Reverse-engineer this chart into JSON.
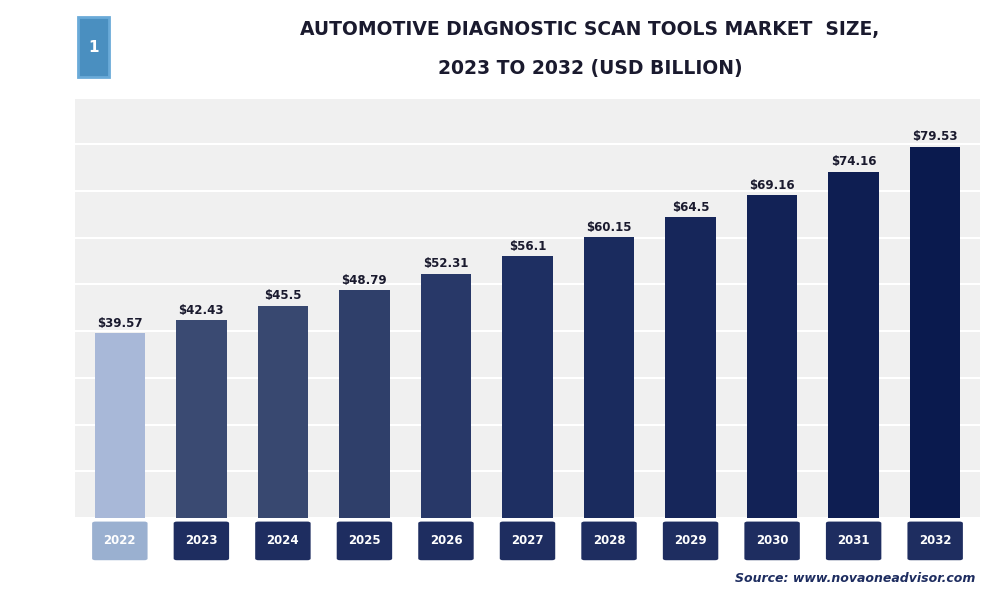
{
  "title_line1": "AUTOMOTIVE DIAGNOSTIC SCAN TOOLS MARKET  SIZE,",
  "title_line2": "2023 TO 2032 (USD BILLION)",
  "years": [
    "2022",
    "2023",
    "2024",
    "2025",
    "2026",
    "2027",
    "2028",
    "2029",
    "2030",
    "2031",
    "2032"
  ],
  "values": [
    39.57,
    42.43,
    45.5,
    48.79,
    52.31,
    56.1,
    60.15,
    64.5,
    69.16,
    74.16,
    79.53
  ],
  "labels": [
    "$39.57",
    "$42.43",
    "$45.5",
    "$48.79",
    "$52.31",
    "$56.1",
    "$60.15",
    "$64.5",
    "$69.16",
    "$74.16",
    "$79.53"
  ],
  "bar_colors": [
    "#a8b8d8",
    "#3a4a72",
    "#384870",
    "#2f3f6a",
    "#283868",
    "#1e2f62",
    "#1a2b5e",
    "#16265a",
    "#122256",
    "#0e1e52",
    "#0a1a4e"
  ],
  "tick_label_bg_2022": "#9ab0d0",
  "tick_label_bg_rest": "#1e2d60",
  "ylim": [
    0,
    90
  ],
  "yticks": [
    0,
    10,
    20,
    30,
    40,
    50,
    60,
    70,
    80,
    90
  ],
  "background_color": "#ffffff",
  "plot_bg_color": "#f0f0f0",
  "grid_color": "#ffffff",
  "title_color": "#1a1a2e",
  "label_color": "#1a1a2e",
  "source_text": "Source: www.novaoneadvisor.com",
  "logo_dark_bg": "#1e2d60",
  "logo_blue_box": "#4a8fc0",
  "logo_blue_border": "#6aaad8"
}
